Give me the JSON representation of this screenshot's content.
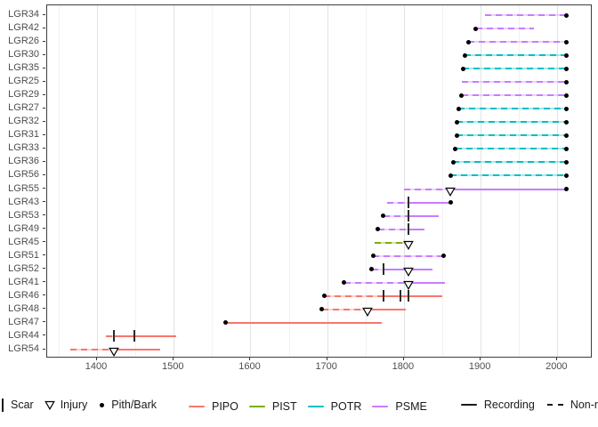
{
  "chart_data": {
    "type": "line",
    "subtype": "fire-history-demography",
    "title": "",
    "xlabel": "",
    "ylabel": "",
    "grid": "vertical-only",
    "xlim": [
      1335,
      2046
    ],
    "x_ticks": [
      1400,
      1500,
      1600,
      1700,
      1800,
      1900,
      2000
    ],
    "x_minor_ticks": [
      1350,
      1450,
      1550,
      1650,
      1750,
      1850,
      1950
    ],
    "legend": {
      "scar": "Scar",
      "injury": "Injury",
      "pith_bark": "Pith/Bark",
      "recording": "Recording",
      "non_recording": "Non-recording"
    },
    "species_order": [
      "PIPO",
      "PIST",
      "POTR",
      "PSME"
    ],
    "species_colors": {
      "PIPO": "#F8766D",
      "PIST": "#7CAE00",
      "POTR": "#00BFC4",
      "PSME": "#C77CFF"
    },
    "marker_color": "#000000",
    "series": [
      {
        "name": "LGR34",
        "species": "PSME",
        "inner": 1906,
        "outer": 2012,
        "pith": false,
        "bark": true,
        "scars": [],
        "injuries": [],
        "segments": [
          {
            "from": 1906,
            "to": 2012,
            "style": "dashed"
          }
        ]
      },
      {
        "name": "LGR42",
        "species": "PSME",
        "inner": 1894,
        "outer": 1970,
        "pith": true,
        "bark": false,
        "scars": [],
        "injuries": [],
        "segments": [
          {
            "from": 1894,
            "to": 1970,
            "style": "dashed"
          }
        ]
      },
      {
        "name": "LGR26",
        "species": "PSME",
        "inner": 1884,
        "outer": 2012,
        "pith": true,
        "bark": true,
        "scars": [],
        "injuries": [],
        "segments": [
          {
            "from": 1884,
            "to": 2012,
            "style": "dashed"
          }
        ]
      },
      {
        "name": "LGR30",
        "species": "POTR",
        "inner": 1879,
        "outer": 2012,
        "pith": true,
        "bark": true,
        "scars": [],
        "injuries": [],
        "segments": [
          {
            "from": 1879,
            "to": 2012,
            "style": "dashed"
          }
        ]
      },
      {
        "name": "LGR35",
        "species": "POTR",
        "inner": 1877,
        "outer": 2012,
        "pith": true,
        "bark": true,
        "scars": [],
        "injuries": [],
        "segments": [
          {
            "from": 1877,
            "to": 2012,
            "style": "dashed"
          }
        ]
      },
      {
        "name": "LGR25",
        "species": "PSME",
        "inner": 1876,
        "outer": 2012,
        "pith": false,
        "bark": true,
        "scars": [],
        "injuries": [],
        "segments": [
          {
            "from": 1876,
            "to": 2012,
            "style": "dashed"
          }
        ]
      },
      {
        "name": "LGR29",
        "species": "PSME",
        "inner": 1875,
        "outer": 2012,
        "pith": true,
        "bark": true,
        "scars": [],
        "injuries": [],
        "segments": [
          {
            "from": 1875,
            "to": 2012,
            "style": "dashed"
          }
        ]
      },
      {
        "name": "LGR27",
        "species": "POTR",
        "inner": 1871,
        "outer": 2012,
        "pith": true,
        "bark": true,
        "scars": [],
        "injuries": [],
        "segments": [
          {
            "from": 1871,
            "to": 2012,
            "style": "dashed"
          }
        ]
      },
      {
        "name": "LGR32",
        "species": "POTR",
        "inner": 1869,
        "outer": 2012,
        "pith": true,
        "bark": true,
        "scars": [],
        "injuries": [],
        "segments": [
          {
            "from": 1869,
            "to": 2012,
            "style": "dashed"
          }
        ]
      },
      {
        "name": "LGR31",
        "species": "POTR",
        "inner": 1869,
        "outer": 2012,
        "pith": true,
        "bark": true,
        "scars": [],
        "injuries": [],
        "segments": [
          {
            "from": 1869,
            "to": 2012,
            "style": "dashed"
          }
        ]
      },
      {
        "name": "LGR33",
        "species": "POTR",
        "inner": 1867,
        "outer": 2012,
        "pith": true,
        "bark": true,
        "scars": [],
        "injuries": [],
        "segments": [
          {
            "from": 1867,
            "to": 2012,
            "style": "dashed"
          }
        ]
      },
      {
        "name": "LGR36",
        "species": "POTR",
        "inner": 1864,
        "outer": 2012,
        "pith": true,
        "bark": true,
        "scars": [],
        "injuries": [],
        "segments": [
          {
            "from": 1864,
            "to": 2012,
            "style": "dashed"
          }
        ]
      },
      {
        "name": "LGR56",
        "species": "POTR",
        "inner": 1861,
        "outer": 2012,
        "pith": true,
        "bark": true,
        "scars": [],
        "injuries": [],
        "segments": [
          {
            "from": 1861,
            "to": 2012,
            "style": "dashed"
          }
        ]
      },
      {
        "name": "LGR55",
        "species": "PSME",
        "inner": 1800,
        "outer": 2012,
        "pith": false,
        "bark": true,
        "scars": [],
        "injuries": [
          1861
        ],
        "segments": [
          {
            "from": 1800,
            "to": 1861,
            "style": "dashed"
          },
          {
            "from": 1861,
            "to": 2012,
            "style": "solid"
          }
        ]
      },
      {
        "name": "LGR43",
        "species": "PSME",
        "inner": 1778,
        "outer": 1861,
        "pith": false,
        "bark": true,
        "scars": [
          1806
        ],
        "injuries": [],
        "segments": [
          {
            "from": 1778,
            "to": 1806,
            "style": "dashed"
          },
          {
            "from": 1806,
            "to": 1861,
            "style": "solid"
          }
        ]
      },
      {
        "name": "LGR53",
        "species": "PSME",
        "inner": 1773,
        "outer": 1845,
        "pith": true,
        "bark": false,
        "scars": [
          1806
        ],
        "injuries": [],
        "segments": [
          {
            "from": 1773,
            "to": 1806,
            "style": "dashed"
          },
          {
            "from": 1806,
            "to": 1845,
            "style": "solid"
          }
        ]
      },
      {
        "name": "LGR49",
        "species": "PSME",
        "inner": 1766,
        "outer": 1827,
        "pith": true,
        "bark": false,
        "scars": [
          1806
        ],
        "injuries": [],
        "segments": [
          {
            "from": 1766,
            "to": 1806,
            "style": "dashed"
          },
          {
            "from": 1806,
            "to": 1827,
            "style": "solid"
          }
        ]
      },
      {
        "name": "LGR45",
        "species": "PIST",
        "inner": 1762,
        "outer": 1806,
        "pith": false,
        "bark": false,
        "scars": [],
        "injuries": [
          1806
        ],
        "segments": [
          {
            "from": 1762,
            "to": 1806,
            "style": "dashed"
          }
        ]
      },
      {
        "name": "LGR51",
        "species": "PSME",
        "inner": 1760,
        "outer": 1852,
        "pith": true,
        "bark": true,
        "scars": [],
        "injuries": [],
        "segments": [
          {
            "from": 1760,
            "to": 1852,
            "style": "dashed"
          }
        ]
      },
      {
        "name": "LGR52",
        "species": "PSME",
        "inner": 1758,
        "outer": 1837,
        "pith": true,
        "bark": false,
        "scars": [
          1773
        ],
        "injuries": [
          1806
        ],
        "segments": [
          {
            "from": 1758,
            "to": 1773,
            "style": "dashed"
          },
          {
            "from": 1773,
            "to": 1837,
            "style": "solid"
          }
        ]
      },
      {
        "name": "LGR41",
        "species": "PSME",
        "inner": 1722,
        "outer": 1853,
        "pith": true,
        "bark": false,
        "scars": [],
        "injuries": [
          1806
        ],
        "segments": [
          {
            "from": 1722,
            "to": 1806,
            "style": "dashed"
          },
          {
            "from": 1806,
            "to": 1853,
            "style": "solid"
          }
        ]
      },
      {
        "name": "LGR46",
        "species": "PIPO",
        "inner": 1696,
        "outer": 1850,
        "pith": true,
        "bark": false,
        "scars": [
          1773,
          1795,
          1806
        ],
        "injuries": [],
        "segments": [
          {
            "from": 1696,
            "to": 1773,
            "style": "dashed"
          },
          {
            "from": 1773,
            "to": 1850,
            "style": "solid"
          }
        ]
      },
      {
        "name": "LGR48",
        "species": "PIPO",
        "inner": 1693,
        "outer": 1803,
        "pith": true,
        "bark": false,
        "scars": [],
        "injuries": [
          1752
        ],
        "segments": [
          {
            "from": 1693,
            "to": 1752,
            "style": "dashed"
          },
          {
            "from": 1752,
            "to": 1803,
            "style": "solid"
          }
        ]
      },
      {
        "name": "LGR47",
        "species": "PIPO",
        "inner": 1567,
        "outer": 1771,
        "pith": true,
        "bark": false,
        "scars": [],
        "injuries": [],
        "segments": [
          {
            "from": 1567,
            "to": 1771,
            "style": "solid"
          }
        ]
      },
      {
        "name": "LGR44",
        "species": "PIPO",
        "inner": 1412,
        "outer": 1503,
        "pith": false,
        "bark": false,
        "scars": [
          1422,
          1449
        ],
        "injuries": [],
        "segments": [
          {
            "from": 1412,
            "to": 1422,
            "style": "dashed"
          },
          {
            "from": 1422,
            "to": 1503,
            "style": "solid"
          }
        ]
      },
      {
        "name": "LGR54",
        "species": "PIPO",
        "inner": 1365,
        "outer": 1482,
        "pith": false,
        "bark": false,
        "scars": [],
        "injuries": [
          1422
        ],
        "segments": [
          {
            "from": 1365,
            "to": 1422,
            "style": "dashed"
          },
          {
            "from": 1422,
            "to": 1482,
            "style": "solid"
          }
        ]
      }
    ]
  }
}
